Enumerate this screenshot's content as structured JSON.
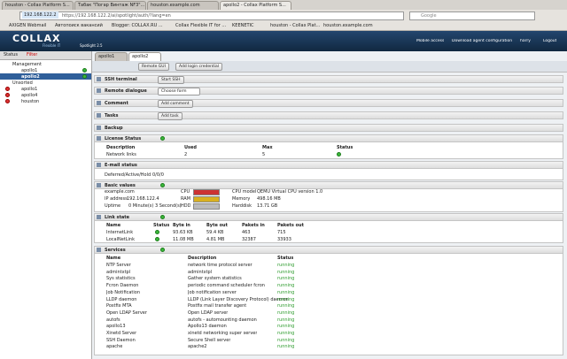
{
  "browser": {
    "tabs": [
      "houston - Collax Platform S...",
      "Табак \"Погар Винтаж NF3\"...",
      "houston.example.com",
      "apollo2 - Collax Platform S..."
    ],
    "url_host": "192.168.122.2",
    "url": "https://192.168.122.2/ai/spotlight/auth/?lang=en",
    "search": "Google",
    "bookmarks": [
      "AXIGEN Webmail",
      "Автопоиск вакансий",
      "Blogger: COLLAX.RU ...",
      "Collax Flexible IT for ...",
      "KEENETIC",
      "houston - Collax Plat...",
      "houston.example.com"
    ]
  },
  "header": {
    "logo": "COLLAX",
    "tagline": "Flexible IT",
    "product": "Spotlight 2.5",
    "links": [
      "Mobile access",
      "Download agent configuration",
      "harry",
      "Logout"
    ]
  },
  "sidebar": {
    "status": "Status",
    "filter": "Filter",
    "groups": [
      {
        "name": "Management",
        "hosts": [
          "apollo1",
          "apollo2"
        ]
      },
      {
        "name": "Unsorted",
        "hosts": [
          "apollo1",
          "apollo4",
          "houston"
        ]
      }
    ]
  },
  "tabs": [
    "apollo1",
    "apollo2"
  ],
  "toolbar": [
    "Remote GUI",
    "Add login credential"
  ],
  "sections": {
    "ssh": {
      "title": "SSH terminal",
      "button": "Start SSH"
    },
    "remote": {
      "title": "Remote dialogue",
      "select": "Choose form"
    },
    "comment": {
      "title": "Comment",
      "button": "Add comment"
    },
    "tasks": {
      "title": "Tasks",
      "button": "Add task"
    },
    "backup": {
      "title": "Backup"
    },
    "license": {
      "title": "License Status",
      "columns": [
        "Description",
        "Used",
        "Max",
        "Status"
      ],
      "rows": [
        [
          "Network links",
          "2",
          "5"
        ]
      ]
    },
    "email": {
      "title": "E-mail status",
      "label": "Deferred/Active/Hold",
      "value": "0/0/0"
    },
    "basic": {
      "title": "Basic values",
      "host": "example.com",
      "ip_label": "IP address",
      "ip": "192.168.122.4",
      "uptime_label": "Uptime",
      "uptime": "0 Minute(s) 3 Second(s)",
      "gauges": [
        "CPU",
        "RAM",
        "HDD"
      ],
      "cpu_model_label": "CPU model",
      "cpu_model": "QEMU Virtual CPU version 1.0",
      "memory_label": "Memory",
      "memory": "498.16 MB",
      "disk_label": "Harddisk",
      "disk": "13.71 GB"
    },
    "links": {
      "title": "Link state",
      "columns": [
        "Name",
        "Status",
        "Byte in",
        "Byte out",
        "Pakets in",
        "Pakets out"
      ],
      "rows": [
        [
          "InternetLink",
          "93.63 KB",
          "59.4 KB",
          "463",
          "715"
        ],
        [
          "LocalNetLink",
          "11.08 MB",
          "4.81 MB",
          "32387",
          "33933"
        ]
      ]
    },
    "services": {
      "title": "Services",
      "columns": [
        "Name",
        "Description",
        "Status"
      ],
      "rows": [
        [
          "NTP Server",
          "network time protocol server",
          "running"
        ],
        [
          "admintxtpl",
          "admintxtpl",
          "running"
        ],
        [
          "Sys statistics",
          "Gather system statistics",
          "running"
        ],
        [
          "Fcron Daemon",
          "periodic command scheduler fcron",
          "running"
        ],
        [
          "Job Notification",
          "Job notification server",
          "running"
        ],
        [
          "LLDP daemon",
          "LLDP (Link Layer Discovery Protocol) daemon",
          "running"
        ],
        [
          "Postfix MTA",
          "Postfix mail transfer agent",
          "running"
        ],
        [
          "Open LDAP Server",
          "Open LDAP server",
          "running"
        ],
        [
          "autofs",
          "autofs - automounting daemon",
          "running"
        ],
        [
          "apollo13",
          "Apollo13 daemon",
          "running"
        ],
        [
          "Xinetd Server",
          "xinetd networking super server",
          "running"
        ],
        [
          "SSH Daemon",
          "Secure Shell server",
          "running"
        ],
        [
          "apache",
          "apache2",
          "running"
        ]
      ]
    }
  }
}
